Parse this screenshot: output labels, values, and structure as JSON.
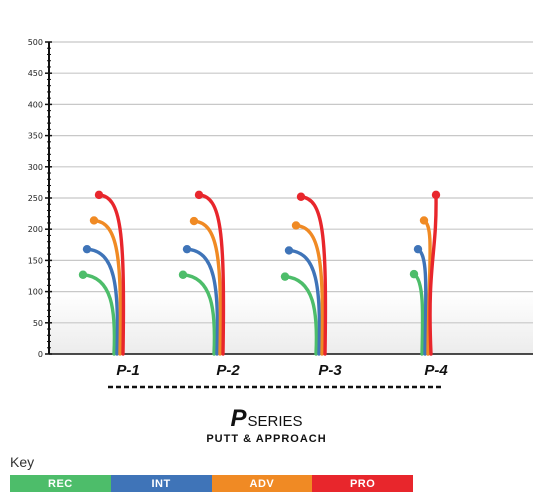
{
  "chart_data": {
    "type": "line",
    "ylim": [
      0,
      500
    ],
    "yticks": [
      0,
      50,
      100,
      150,
      200,
      250,
      300,
      350,
      400,
      450,
      500
    ],
    "grid": true,
    "discs": [
      "P1",
      "P2",
      "P3",
      "P4"
    ],
    "disc_labels": [
      "P-1",
      "P-2",
      "P-3",
      "P-4"
    ],
    "series": [
      {
        "name": "REC",
        "color": "#4dbd6a",
        "values": [
          127,
          127,
          124,
          128
        ]
      },
      {
        "name": "INT",
        "color": "#3f74b8",
        "values": [
          168,
          168,
          166,
          168
        ]
      },
      {
        "name": "ADV",
        "color": "#f08a24",
        "values": [
          214,
          213,
          206,
          214
        ]
      },
      {
        "name": "PRO",
        "color": "#e8262c",
        "values": [
          255,
          255,
          252,
          255
        ]
      }
    ]
  },
  "footer": {
    "brand": "P",
    "series_word": "SERIES",
    "subtitle": "PUTT & APPROACH"
  },
  "key": {
    "title": "Key",
    "items": [
      {
        "label": "REC",
        "color": "#4dbd6a"
      },
      {
        "label": "INT",
        "color": "#3f74b8"
      },
      {
        "label": "ADV",
        "color": "#f08a24"
      },
      {
        "label": "PRO",
        "color": "#e8262c"
      }
    ]
  }
}
